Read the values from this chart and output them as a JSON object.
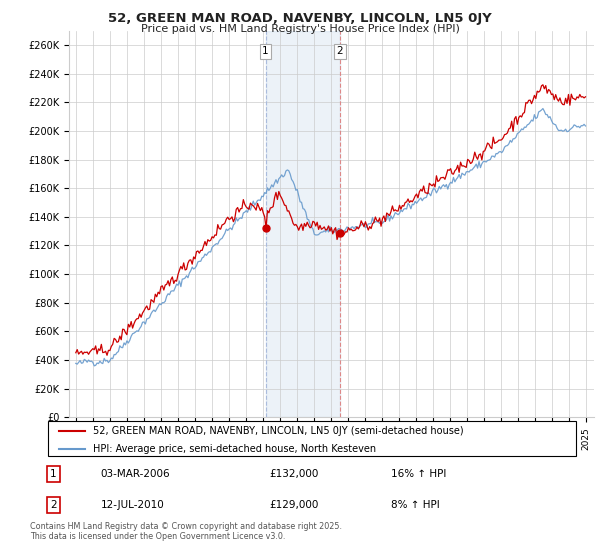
{
  "title": "52, GREEN MAN ROAD, NAVENBY, LINCOLN, LN5 0JY",
  "subtitle": "Price paid vs. HM Land Registry's House Price Index (HPI)",
  "legend_line1": "52, GREEN MAN ROAD, NAVENBY, LINCOLN, LN5 0JY (semi-detached house)",
  "legend_line2": "HPI: Average price, semi-detached house, North Kesteven",
  "footnote": "Contains HM Land Registry data © Crown copyright and database right 2025.\nThis data is licensed under the Open Government Licence v3.0.",
  "annotation1_date": "03-MAR-2006",
  "annotation1_price": "£132,000",
  "annotation1_hpi": "16% ↑ HPI",
  "annotation2_date": "12-JUL-2010",
  "annotation2_price": "£129,000",
  "annotation2_hpi": "8% ↑ HPI",
  "red_color": "#cc0000",
  "blue_color": "#6699cc",
  "grid_color": "#cccccc",
  "background_color": "#ffffff",
  "chart_bg": "#ffffff",
  "yticks": [
    0,
    20000,
    40000,
    60000,
    80000,
    100000,
    120000,
    140000,
    160000,
    180000,
    200000,
    220000,
    240000,
    260000
  ],
  "year_start": 1995,
  "year_end": 2025,
  "vline1_year": 2006.17,
  "vline2_year": 2010.53,
  "purchase1_value": 132000,
  "purchase2_value": 129000
}
